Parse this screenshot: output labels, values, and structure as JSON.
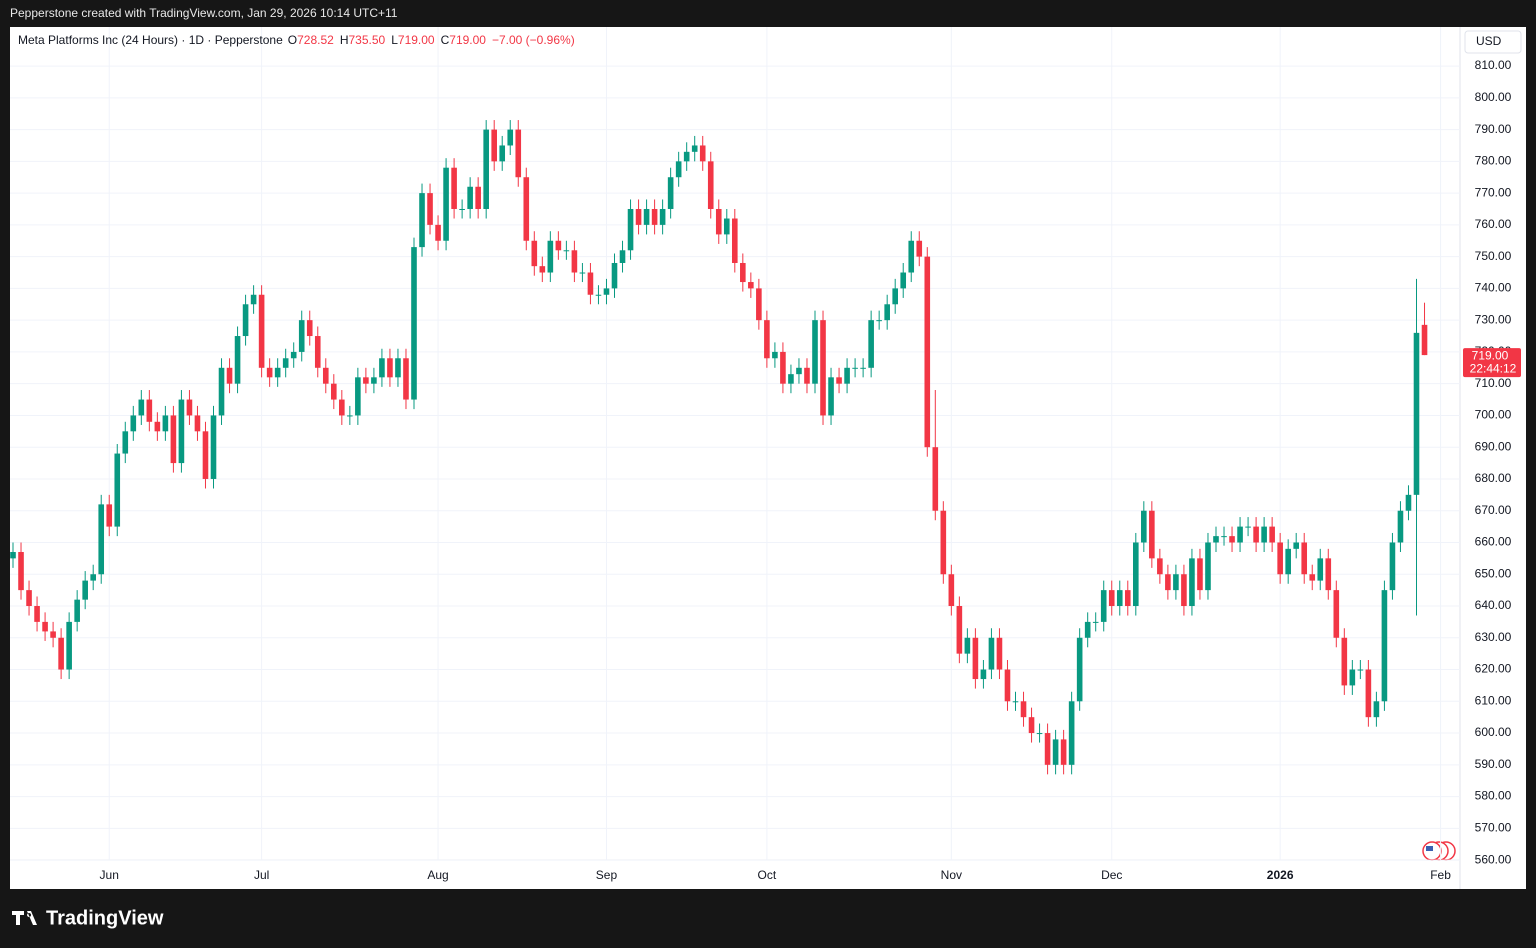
{
  "header": {
    "text": "Pepperstone created with TradingView.com, Jan 29, 2026 10:14 UTC+11"
  },
  "footer": {
    "brand": "TradingView"
  },
  "chart_data": {
    "type": "candlestick",
    "title": "Meta Platforms Inc (24 Hours) · 1D · Pepperstone",
    "legend_values": [
      {
        "key": "O",
        "value": "728.52"
      },
      {
        "key": "H",
        "value": "735.50"
      },
      {
        "key": "L",
        "value": "719.00"
      },
      {
        "key": "C",
        "value": "719.00"
      }
    ],
    "change": "−7.00 (−0.96%)",
    "currency": "USD",
    "price_tag": {
      "price": "719.00",
      "countdown": "22:44:12"
    },
    "up_color": "#089981",
    "down_color": "#f23645",
    "grid": true,
    "categories": [
      null,
      null,
      null,
      null,
      null,
      null,
      null,
      null,
      null,
      null,
      null,
      null,
      "Jun",
      null,
      null,
      null,
      null,
      null,
      null,
      null,
      null,
      null,
      null,
      null,
      null,
      null,
      null,
      null,
      null,
      null,
      null,
      "Jul",
      null,
      null,
      null,
      null,
      null,
      null,
      null,
      null,
      null,
      null,
      null,
      null,
      null,
      null,
      null,
      null,
      null,
      null,
      null,
      null,
      null,
      "Aug",
      null,
      null,
      null,
      null,
      null,
      null,
      null,
      null,
      null,
      null,
      null,
      null,
      null,
      null,
      null,
      null,
      null,
      null,
      null,
      null,
      "Sep",
      null,
      null,
      null,
      null,
      null,
      null,
      null,
      null,
      null,
      null,
      null,
      null,
      null,
      null,
      null,
      null,
      null,
      null,
      null,
      "Oct",
      null,
      null,
      null,
      null,
      null,
      null,
      null,
      null,
      null,
      null,
      null,
      null,
      null,
      null,
      null,
      null,
      null,
      null,
      null,
      null,
      null,
      null,
      "Nov",
      null,
      null,
      null,
      null,
      null,
      null,
      null,
      null,
      null,
      null,
      null,
      null,
      null,
      null,
      null,
      null,
      null,
      null,
      null,
      "Dec",
      null,
      null,
      null,
      null,
      null,
      null,
      null,
      null,
      null,
      null,
      null,
      null,
      null,
      null,
      null,
      null,
      null,
      null,
      null,
      null,
      "2026",
      null,
      null,
      null,
      null,
      null,
      null,
      null,
      null,
      null,
      null,
      null,
      null,
      null,
      null,
      null,
      null,
      null,
      null,
      null,
      "Feb"
    ],
    "open": [
      655,
      657,
      645,
      640,
      635,
      632,
      630,
      620,
      635,
      642,
      648,
      650,
      672,
      665,
      688,
      695,
      700,
      705,
      698,
      695,
      700,
      685,
      705,
      700,
      695,
      680,
      700,
      715,
      710,
      725,
      735,
      738,
      715,
      712,
      715,
      718,
      720,
      730,
      725,
      715,
      710,
      705,
      700,
      700,
      712,
      710,
      712,
      718,
      712,
      718,
      705,
      753,
      770,
      760,
      755,
      778,
      765,
      765,
      772,
      765,
      790,
      780,
      785,
      790,
      775,
      755,
      747,
      745,
      755,
      752,
      752,
      745,
      745,
      738,
      738,
      740,
      748,
      752,
      765,
      760,
      765,
      760,
      765,
      775,
      780,
      783,
      785,
      780,
      765,
      757,
      762,
      748,
      742,
      740,
      730,
      718,
      720,
      710,
      713,
      715,
      710,
      730,
      700,
      712,
      710,
      715,
      715,
      715,
      730,
      730,
      735,
      740,
      745,
      755,
      750,
      690,
      670,
      650,
      640,
      625,
      630,
      617,
      620,
      630,
      620,
      610,
      610,
      605,
      600,
      600,
      590,
      598,
      590,
      610,
      630,
      635,
      635,
      645,
      640,
      645,
      640,
      660,
      670,
      655,
      650,
      645,
      650,
      640,
      655,
      645,
      660,
      662,
      662,
      660,
      665,
      665,
      660,
      665,
      660,
      650,
      658,
      660,
      650,
      648,
      655,
      645,
      630,
      615,
      620,
      620,
      605,
      610,
      645,
      660,
      670,
      675,
      728.52,
      null,
      null
    ],
    "high": [
      660,
      660,
      648,
      643,
      638,
      635,
      633,
      638,
      645,
      651,
      653,
      675,
      675,
      691,
      698,
      703,
      708,
      708,
      701,
      703,
      703,
      708,
      708,
      703,
      698,
      703,
      718,
      718,
      728,
      738,
      741,
      741,
      718,
      718,
      721,
      723,
      733,
      733,
      728,
      718,
      713,
      708,
      703,
      715,
      715,
      715,
      721,
      721,
      721,
      721,
      756,
      773,
      773,
      763,
      781,
      781,
      768,
      775,
      775,
      793,
      793,
      788,
      793,
      793,
      778,
      758,
      750,
      758,
      758,
      755,
      755,
      748,
      748,
      741,
      743,
      751,
      755,
      768,
      768,
      768,
      768,
      768,
      778,
      783,
      786,
      788,
      788,
      783,
      768,
      765,
      765,
      751,
      745,
      743,
      733,
      723,
      723,
      716,
      718,
      718,
      733,
      733,
      715,
      715,
      718,
      718,
      718,
      733,
      733,
      738,
      743,
      748,
      758,
      758,
      753,
      708,
      673,
      653,
      643,
      633,
      633,
      623,
      633,
      633,
      623,
      613,
      613,
      608,
      603,
      603,
      601,
      601,
      613,
      633,
      638,
      638,
      648,
      648,
      648,
      648,
      663,
      673,
      673,
      658,
      653,
      653,
      653,
      658,
      658,
      663,
      665,
      665,
      665,
      668,
      668,
      668,
      668,
      668,
      663,
      661,
      663,
      663,
      653,
      658,
      658,
      648,
      633,
      623,
      623,
      623,
      613,
      648,
      663,
      673,
      678,
      743,
      735.5,
      null,
      null
    ],
    "low": [
      652,
      642,
      637,
      632,
      629,
      627,
      617,
      617,
      632,
      639,
      645,
      647,
      662,
      662,
      685,
      692,
      697,
      695,
      692,
      692,
      682,
      682,
      697,
      692,
      677,
      677,
      697,
      707,
      707,
      722,
      732,
      712,
      709,
      709,
      712,
      715,
      717,
      722,
      712,
      707,
      702,
      697,
      697,
      697,
      707,
      707,
      709,
      709,
      709,
      702,
      702,
      750,
      757,
      752,
      752,
      762,
      762,
      762,
      762,
      762,
      777,
      777,
      782,
      772,
      752,
      744,
      742,
      742,
      749,
      749,
      742,
      742,
      735,
      735,
      735,
      737,
      745,
      749,
      757,
      757,
      757,
      757,
      762,
      772,
      777,
      780,
      777,
      762,
      754,
      754,
      745,
      739,
      737,
      727,
      715,
      715,
      707,
      707,
      710,
      707,
      707,
      697,
      697,
      707,
      707,
      712,
      712,
      712,
      727,
      727,
      732,
      737,
      742,
      747,
      687,
      667,
      647,
      637,
      622,
      622,
      614,
      614,
      617,
      617,
      607,
      607,
      602,
      597,
      597,
      587,
      587,
      587,
      587,
      607,
      627,
      632,
      632,
      637,
      637,
      637,
      637,
      657,
      652,
      647,
      642,
      642,
      637,
      637,
      642,
      642,
      657,
      659,
      657,
      657,
      662,
      657,
      657,
      657,
      647,
      647,
      655,
      647,
      645,
      645,
      642,
      627,
      612,
      612,
      617,
      602,
      602,
      607,
      642,
      657,
      667,
      637,
      719,
      null,
      null
    ],
    "close": [
      657,
      645,
      640,
      635,
      632,
      630,
      620,
      635,
      642,
      648,
      650,
      672,
      665,
      688,
      695,
      700,
      705,
      698,
      695,
      700,
      685,
      705,
      700,
      695,
      680,
      700,
      715,
      710,
      725,
      735,
      738,
      715,
      712,
      715,
      718,
      720,
      730,
      725,
      715,
      710,
      705,
      700,
      700,
      712,
      710,
      712,
      718,
      712,
      718,
      705,
      753,
      770,
      760,
      755,
      778,
      765,
      765,
      772,
      765,
      790,
      780,
      785,
      790,
      775,
      755,
      747,
      745,
      755,
      752,
      752,
      745,
      745,
      738,
      738,
      740,
      748,
      752,
      765,
      760,
      765,
      760,
      765,
      775,
      780,
      783,
      785,
      780,
      765,
      757,
      762,
      748,
      742,
      740,
      730,
      718,
      720,
      710,
      713,
      715,
      710,
      730,
      700,
      712,
      710,
      715,
      715,
      715,
      730,
      730,
      735,
      740,
      745,
      755,
      750,
      690,
      670,
      650,
      640,
      625,
      630,
      617,
      620,
      630,
      620,
      610,
      610,
      605,
      600,
      600,
      590,
      598,
      590,
      610,
      630,
      635,
      635,
      645,
      640,
      645,
      640,
      660,
      670,
      655,
      650,
      645,
      650,
      640,
      655,
      645,
      660,
      662,
      662,
      660,
      665,
      665,
      660,
      665,
      660,
      650,
      658,
      660,
      650,
      648,
      655,
      645,
      630,
      615,
      620,
      620,
      605,
      610,
      645,
      660,
      670,
      675,
      726,
      719,
      null,
      null
    ],
    "ylim": [
      550.9,
      822.3
    ],
    "yticks": [
      {
        "value": 560,
        "label": "560.00"
      },
      {
        "value": 570,
        "label": "570.00"
      },
      {
        "value": 580,
        "label": "580.00"
      },
      {
        "value": 590,
        "label": "590.00"
      },
      {
        "value": 600,
        "label": "600.00"
      },
      {
        "value": 610,
        "label": "610.00"
      },
      {
        "value": 620,
        "label": "620.00"
      },
      {
        "value": 630,
        "label": "630.00"
      },
      {
        "value": 640,
        "label": "640.00"
      },
      {
        "value": 650,
        "label": "650.00"
      },
      {
        "value": 660,
        "label": "660.00"
      },
      {
        "value": 670,
        "label": "670.00"
      },
      {
        "value": 680,
        "label": "680.00"
      },
      {
        "value": 690,
        "label": "690.00"
      },
      {
        "value": 700,
        "label": "700.00"
      },
      {
        "value": 710,
        "label": "710.00"
      },
      {
        "value": 720,
        "label": "720.00"
      },
      {
        "value": 730,
        "label": "730.00"
      },
      {
        "value": 740,
        "label": "740.00"
      },
      {
        "value": 750,
        "label": "750.00"
      },
      {
        "value": 760,
        "label": "760.00"
      },
      {
        "value": 770,
        "label": "770.00"
      },
      {
        "value": 780,
        "label": "780.00"
      },
      {
        "value": 790,
        "label": "790.00"
      },
      {
        "value": 800,
        "label": "800.00"
      },
      {
        "value": 810,
        "label": "810.00"
      }
    ]
  }
}
